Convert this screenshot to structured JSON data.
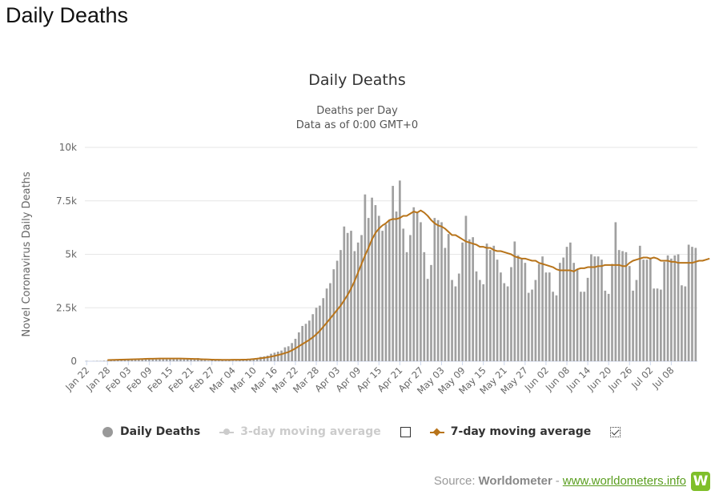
{
  "page": {
    "title": "Daily Deaths"
  },
  "legend": {
    "daily": "Daily Deaths",
    "ma3": "3-day moving average",
    "ma7": "7-day moving average"
  },
  "source": {
    "prefix": "Source:",
    "name": "Worldometer",
    "separator": "-",
    "link": "www.worldometers.info",
    "logo_letter": "W"
  },
  "colors": {
    "bars": "#a0a0a0",
    "ma7": "#b8741a",
    "grid": "#e6e6e6",
    "logo": "#7fbf2a"
  },
  "chart_data": {
    "type": "bar",
    "title": "Daily Deaths",
    "subtitle": [
      "Deaths per Day",
      "Data as of 0:00 GMT+0"
    ],
    "xlabel": "",
    "ylabel": "Novel Coronavirus Daily Deaths",
    "ylim": [
      0,
      10000
    ],
    "yticks": [
      0,
      2500,
      5000,
      7500,
      10000
    ],
    "ytick_labels": [
      "0",
      "2.5k",
      "5k",
      "7.5k",
      "10k"
    ],
    "x_start": "Jan 22",
    "xtick_labels": [
      "Jan 22",
      "Jan 28",
      "Feb 03",
      "Feb 09",
      "Feb 15",
      "Feb 21",
      "Feb 27",
      "Mar 04",
      "Mar 10",
      "Mar 16",
      "Mar 22",
      "Mar 28",
      "Apr 03",
      "Apr 09",
      "Apr 15",
      "Apr 21",
      "Apr 27",
      "May 03",
      "May 09",
      "May 15",
      "May 21",
      "May 27",
      "Jun 02",
      "Jun 08",
      "Jun 14",
      "Jun 20",
      "Jun 26",
      "Jul 02",
      "Jul 08"
    ],
    "grid": true,
    "legend_position": "bottom",
    "series": [
      {
        "name": "Daily Deaths",
        "type": "bar",
        "values": [
          17,
          0,
          8,
          16,
          14,
          26,
          26,
          38,
          43,
          46,
          45,
          57,
          64,
          66,
          73,
          73,
          86,
          89,
          97,
          108,
          97,
          146,
          121,
          143,
          142,
          105,
          98,
          139,
          115,
          118,
          109,
          97,
          150,
          71,
          52,
          29,
          44,
          47,
          35,
          42,
          31,
          38,
          31,
          30,
          52,
          37,
          60,
          74,
          99,
          130,
          204,
          227,
          265,
          350,
          400,
          450,
          500,
          650,
          700,
          850,
          1050,
          1350,
          1650,
          1750,
          1900,
          2200,
          2500,
          2600,
          2950,
          3400,
          3650,
          4300,
          4700,
          5200,
          6300,
          6000,
          6100,
          5150,
          5550,
          5900,
          7800,
          6700,
          7650,
          7300,
          6800,
          6100,
          6400,
          6600,
          8200,
          7000,
          8450,
          6200,
          5100,
          5900,
          7200,
          6950,
          6500,
          5100,
          3850,
          4500,
          6700,
          6600,
          6500,
          5300,
          5950,
          3800,
          3500,
          4100,
          5550,
          6800,
          5700,
          5800,
          4200,
          3800,
          3600,
          5500,
          5200,
          5400,
          4750,
          4150,
          3650,
          3500,
          4400,
          5600,
          4950,
          4800,
          4600,
          3200,
          3350,
          3800,
          4550,
          4900,
          4150,
          4150,
          3250,
          3080,
          4600,
          4850,
          5350,
          5550,
          4600,
          4300,
          3250,
          3250,
          3900,
          5000,
          4900,
          4900,
          4750,
          3300,
          3150,
          4550,
          6500,
          5200,
          5150,
          5100,
          4450,
          3300,
          3800,
          5400,
          4750,
          4750,
          4850,
          3400,
          3400,
          3350,
          4650,
          4950,
          4800,
          4950,
          5000,
          3550,
          3500,
          5450,
          5350,
          5300
        ]
      },
      {
        "name": "3-day moving average",
        "type": "line",
        "visible": false
      },
      {
        "name": "7-day moving average",
        "type": "line",
        "start_index": 6,
        "values": [
          55,
          60,
          65,
          70,
          75,
          80,
          85,
          90,
          95,
          100,
          105,
          110,
          115,
          118,
          122,
          125,
          125,
          126,
          127,
          127,
          126,
          125,
          122,
          118,
          112,
          108,
          102,
          95,
          88,
          82,
          75,
          70,
          68,
          66,
          65,
          66,
          68,
          70,
          72,
          75,
          80,
          90,
          105,
          120,
          140,
          160,
          185,
          215,
          250,
          290,
          330,
          380,
          430,
          510,
          600,
          700,
          800,
          900,
          1000,
          1120,
          1260,
          1420,
          1610,
          1800,
          2000,
          2200,
          2400,
          2600,
          2850,
          3100,
          3400,
          3750,
          4150,
          4550,
          4950,
          5300,
          5700,
          6000,
          6200,
          6350,
          6450,
          6600,
          6650,
          6650,
          6700,
          6800,
          6800,
          6900,
          7000,
          6950,
          7050,
          6950,
          6800,
          6600,
          6450,
          6350,
          6300,
          6200,
          6050,
          5900,
          5900,
          5800,
          5700,
          5600,
          5550,
          5500,
          5450,
          5350,
          5350,
          5300,
          5300,
          5200,
          5150,
          5150,
          5100,
          5050,
          5000,
          4900,
          4850,
          4800,
          4800,
          4750,
          4700,
          4700,
          4600,
          4550,
          4500,
          4450,
          4400,
          4300,
          4250,
          4250,
          4250,
          4250,
          4200,
          4300,
          4350,
          4350,
          4400,
          4400,
          4400,
          4450,
          4450,
          4500,
          4500,
          4500,
          4500,
          4500,
          4450,
          4450,
          4600,
          4700,
          4750,
          4800,
          4850,
          4850,
          4800,
          4850,
          4800,
          4700,
          4700,
          4700,
          4650,
          4650,
          4600,
          4600,
          4600,
          4600,
          4600,
          4650,
          4700,
          4700,
          4750,
          4800
        ]
      }
    ]
  }
}
